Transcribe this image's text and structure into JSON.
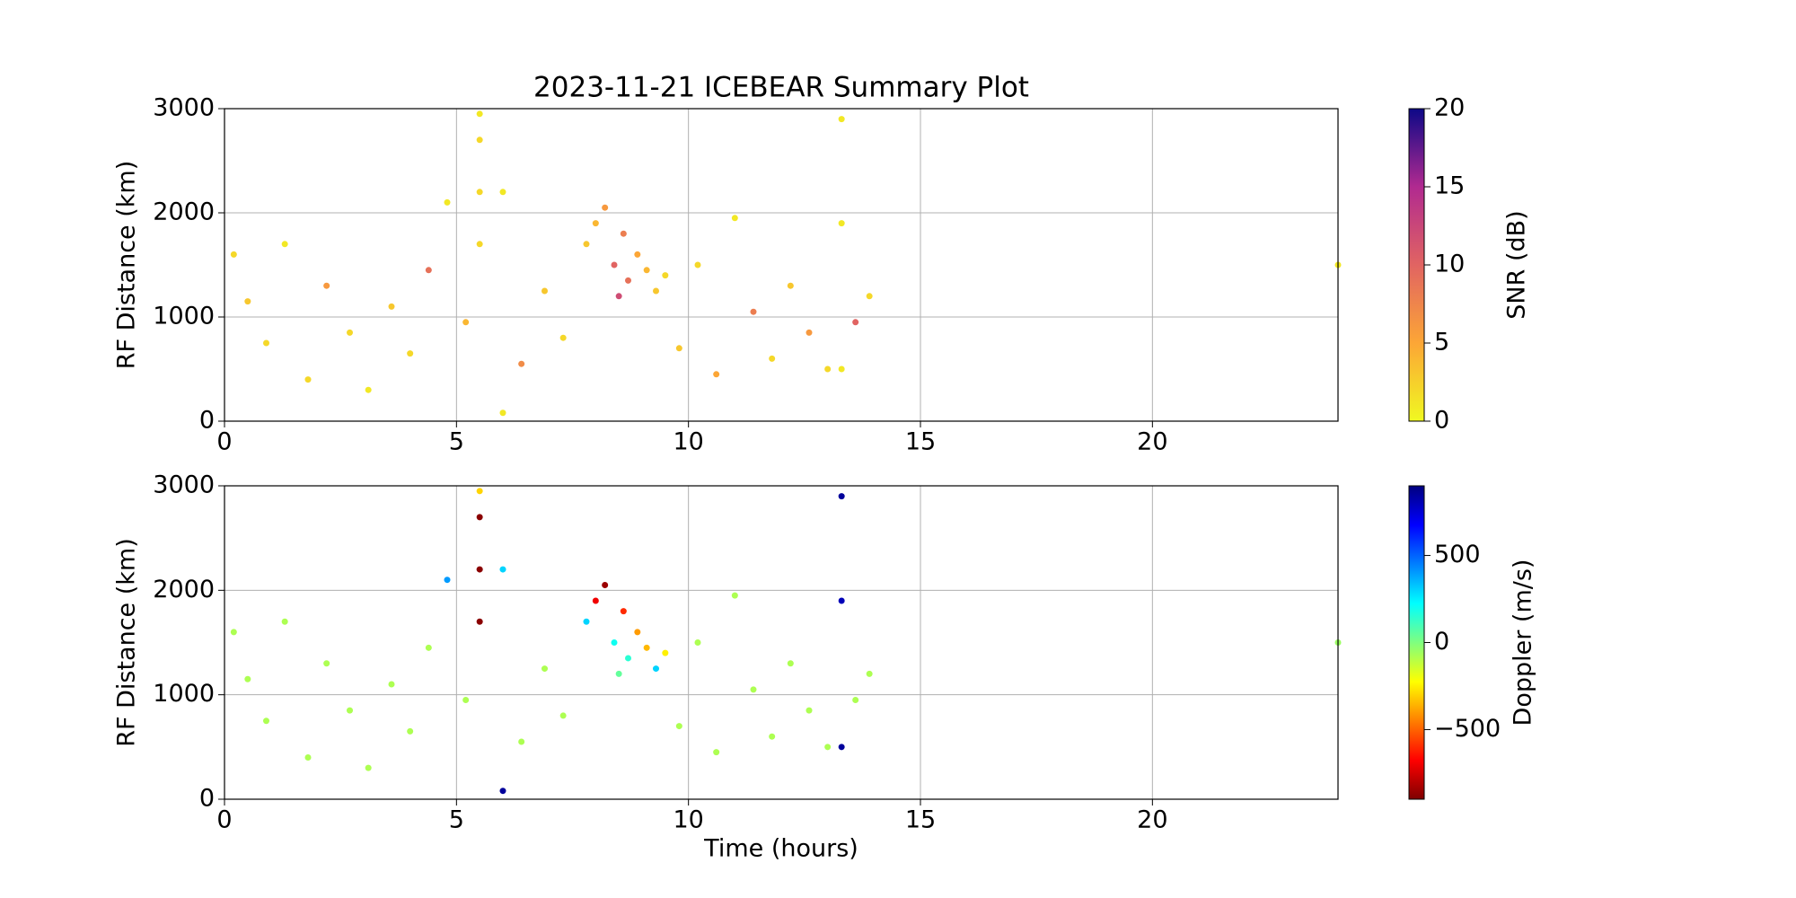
{
  "chart_data": [
    {
      "type": "scatter",
      "title": "2023-11-21 ICEBEAR Summary Plot",
      "ylabel": "RF Distance (km)",
      "xlim": [
        0,
        24
      ],
      "xticks": [
        0,
        5,
        10,
        15,
        20
      ],
      "ylim": [
        0,
        3000
      ],
      "yticks": [
        0,
        1000,
        2000,
        3000
      ],
      "grid": true,
      "x": [
        0.2,
        0.5,
        0.9,
        1.3,
        1.8,
        2.2,
        2.7,
        3.1,
        3.6,
        4.0,
        4.4,
        4.8,
        5.2,
        5.5,
        5.5,
        5.5,
        5.5,
        6.0,
        6.0,
        6.4,
        6.9,
        7.3,
        7.8,
        8.0,
        8.2,
        8.4,
        8.5,
        8.6,
        8.7,
        8.9,
        9.1,
        9.3,
        9.5,
        9.8,
        10.2,
        10.6,
        11.0,
        11.4,
        11.8,
        12.2,
        12.6,
        13.0,
        13.3,
        13.3,
        13.3,
        13.6,
        13.9,
        24.0
      ],
      "y": [
        1600,
        1150,
        750,
        1700,
        400,
        1300,
        850,
        300,
        1100,
        650,
        1450,
        2100,
        950,
        1700,
        2200,
        2700,
        2950,
        80,
        2200,
        550,
        1250,
        800,
        1700,
        1900,
        2050,
        1500,
        1200,
        1800,
        1350,
        1600,
        1450,
        1250,
        1400,
        700,
        1500,
        450,
        1950,
        1050,
        600,
        1300,
        850,
        500,
        2900,
        1900,
        500,
        950,
        1200,
        1500
      ],
      "c": [
        2,
        3,
        2,
        1,
        2,
        6,
        2,
        1,
        3,
        2,
        9,
        1,
        4,
        2,
        2,
        2,
        1,
        1,
        1,
        7,
        3,
        2,
        3,
        4,
        6,
        10,
        12,
        8,
        9,
        5,
        4,
        3,
        2,
        3,
        2,
        5,
        1,
        8,
        2,
        3,
        6,
        2,
        1,
        1,
        1,
        10,
        2,
        1
      ],
      "colorbar_label": "SNR (dB)",
      "clim": [
        0,
        20
      ],
      "cticks": [
        0,
        5,
        10,
        15,
        20
      ],
      "colormap": [
        "#f0f921",
        "#fca636",
        "#e16462",
        "#b12a90",
        "#0d0887"
      ]
    },
    {
      "type": "scatter",
      "ylabel": "RF Distance (km)",
      "xlabel": "Time (hours)",
      "xlim": [
        0,
        24
      ],
      "xticks": [
        0,
        5,
        10,
        15,
        20
      ],
      "ylim": [
        0,
        3000
      ],
      "yticks": [
        0,
        1000,
        2000,
        3000
      ],
      "grid": true,
      "x": [
        0.2,
        0.5,
        0.9,
        1.3,
        1.8,
        2.2,
        2.7,
        3.1,
        3.6,
        4.0,
        4.4,
        4.8,
        5.2,
        5.5,
        5.5,
        5.5,
        5.5,
        6.0,
        6.0,
        6.4,
        6.9,
        7.3,
        7.8,
        8.0,
        8.2,
        8.4,
        8.5,
        8.6,
        8.7,
        8.9,
        9.1,
        9.3,
        9.5,
        9.8,
        10.2,
        10.6,
        11.0,
        11.4,
        11.8,
        12.2,
        12.6,
        13.0,
        13.3,
        13.3,
        13.3,
        13.6,
        13.9,
        24.0
      ],
      "y": [
        1600,
        1150,
        750,
        1700,
        400,
        1300,
        850,
        300,
        1100,
        650,
        1450,
        2100,
        950,
        1700,
        2200,
        2700,
        2950,
        80,
        2200,
        550,
        1250,
        800,
        1700,
        1900,
        2050,
        1500,
        1200,
        1800,
        1350,
        1600,
        1450,
        1250,
        1400,
        700,
        1500,
        450,
        1950,
        1050,
        600,
        1300,
        850,
        500,
        2900,
        1900,
        500,
        950,
        1200,
        1500
      ],
      "c": [
        -80,
        -80,
        -80,
        -80,
        -80,
        -80,
        -80,
        -80,
        -80,
        -80,
        -80,
        400,
        -80,
        -880,
        -880,
        -880,
        -300,
        850,
        300,
        -80,
        -80,
        -80,
        300,
        -700,
        -850,
        200,
        50,
        -600,
        150,
        -400,
        -350,
        300,
        -250,
        -80,
        -80,
        -80,
        -80,
        -80,
        -80,
        -80,
        -80,
        -80,
        850,
        800,
        850,
        -80,
        -80,
        -50
      ],
      "colorbar_label": "Doppler (m/s)",
      "clim": [
        -900,
        900
      ],
      "cticks": [
        {
          "value": -500,
          "label": "−500"
        },
        0,
        500
      ],
      "colormap": [
        "#7f0000",
        "#ff0000",
        "#ff7f00",
        "#ffff00",
        "#7fff7f",
        "#00ffff",
        "#007fff",
        "#0000ff",
        "#00007f"
      ]
    }
  ]
}
